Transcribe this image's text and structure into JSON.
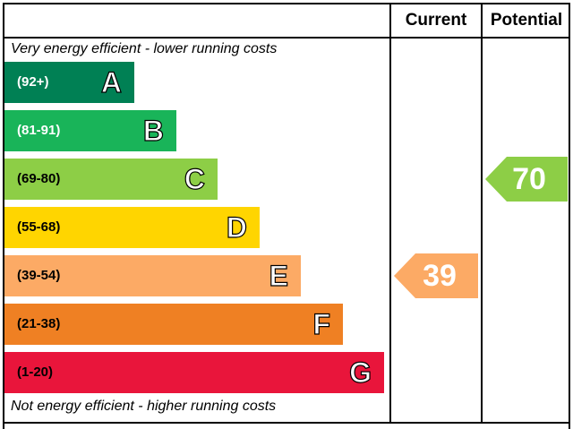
{
  "headers": {
    "current": "Current",
    "potential": "Potential"
  },
  "notes": {
    "top": "Very energy efficient - lower running costs",
    "bottom": "Not energy efficient - higher running costs"
  },
  "chart_data": {
    "type": "bar",
    "categories": [
      "A",
      "B",
      "C",
      "D",
      "E",
      "F",
      "G"
    ],
    "ranges": [
      "(92+)",
      "(81-91)",
      "(69-80)",
      "(55-68)",
      "(39-54)",
      "(21-38)",
      "(1-20)"
    ],
    "colors": [
      "#008054",
      "#19b459",
      "#8dce46",
      "#ffd500",
      "#fcaa65",
      "#ef8023",
      "#e9153b"
    ],
    "range_text_colors": [
      "#ffffff",
      "#ffffff",
      "#000000",
      "#000000",
      "#000000",
      "#000000",
      "#000000"
    ],
    "current": {
      "value": 39,
      "band": "E",
      "color": "#fcaa65"
    },
    "potential": {
      "value": 70,
      "band": "C",
      "color": "#8dce46"
    }
  }
}
